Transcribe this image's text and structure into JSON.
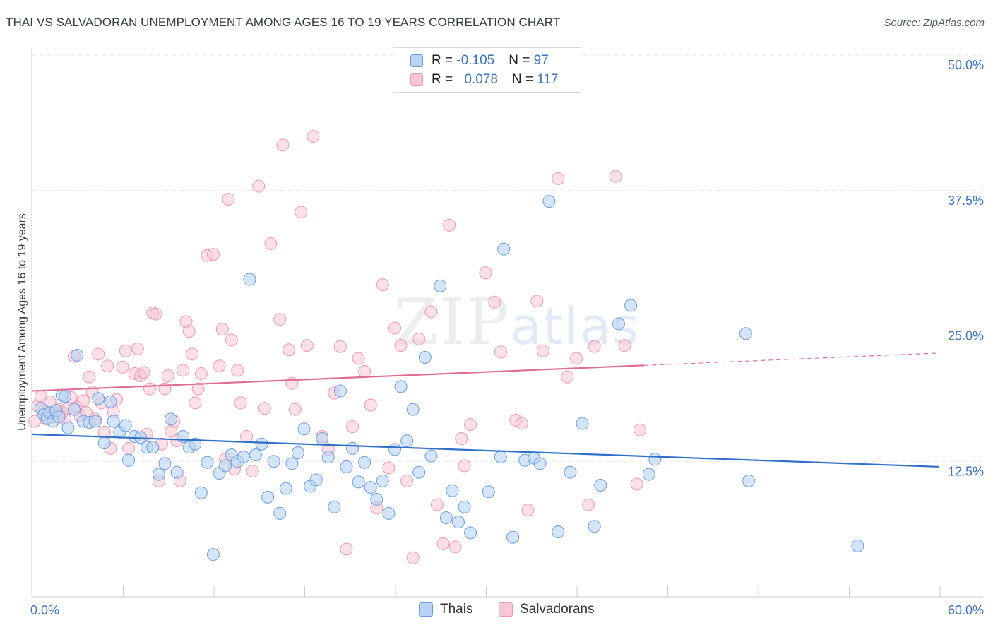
{
  "title": "THAI VS SALVADORAN UNEMPLOYMENT AMONG AGES 16 TO 19 YEARS CORRELATION CHART",
  "source": "Source: ZipAtlas.com",
  "watermark": {
    "zip": "ZIP",
    "atlas": "atlas"
  },
  "legend": {
    "thais": {
      "r_label": "R = ",
      "r_value": "-0.105",
      "n_label": "N = ",
      "n_value": "97"
    },
    "salvadorans": {
      "r_label": "R = ",
      "r_value": "0.078",
      "n_label": "N = ",
      "n_value": "117"
    }
  },
  "colors": {
    "thais_fill": "#b8d3f3",
    "thais_stroke": "#6a9de0",
    "thais_line": "#2f6fc8",
    "salv_fill": "#f8c6d6",
    "salv_stroke": "#ec98b3",
    "salv_line": "#e06d93",
    "axis_text": "#3a72c4",
    "grid": "#e3e6e9"
  },
  "chart_data": {
    "type": "scatter",
    "title": "THAI VS SALVADORAN UNEMPLOYMENT AMONG AGES 16 TO 19 YEARS CORRELATION CHART",
    "xlabel": "",
    "ylabel": "Unemployment Among Ages 16 to 19 years",
    "xlim": [
      0,
      60
    ],
    "ylim": [
      0,
      50
    ],
    "x_tick_labels": [
      "0.0%",
      "60.0%"
    ],
    "y_ticks": [
      12.5,
      25.0,
      37.5,
      50.0
    ],
    "y_tick_labels": [
      "12.5%",
      "25.0%",
      "37.5%",
      "50.0%"
    ],
    "grid": true,
    "legend_position": "top-center",
    "series": [
      {
        "name": "Thais",
        "trend": {
          "x0": 0,
          "y0": 15.0,
          "x1": 60,
          "y1": 12.0,
          "dashed_from": null
        },
        "points": [
          [
            0.6,
            17.4
          ],
          [
            0.8,
            16.8
          ],
          [
            1.0,
            16.5
          ],
          [
            1.2,
            17.0
          ],
          [
            1.4,
            16.2
          ],
          [
            1.6,
            17.2
          ],
          [
            1.8,
            16.6
          ],
          [
            2.0,
            18.6
          ],
          [
            2.2,
            18.5
          ],
          [
            2.4,
            15.6
          ],
          [
            2.8,
            17.3
          ],
          [
            3.0,
            22.3
          ],
          [
            3.4,
            16.2
          ],
          [
            3.8,
            16.1
          ],
          [
            4.2,
            16.2
          ],
          [
            4.4,
            18.3
          ],
          [
            4.8,
            14.2
          ],
          [
            5.2,
            18.0
          ],
          [
            5.4,
            16.2
          ],
          [
            5.8,
            15.2
          ],
          [
            6.2,
            15.8
          ],
          [
            6.4,
            12.6
          ],
          [
            6.8,
            14.8
          ],
          [
            7.2,
            14.7
          ],
          [
            7.6,
            13.8
          ],
          [
            8.0,
            13.8
          ],
          [
            8.4,
            11.3
          ],
          [
            8.8,
            12.3
          ],
          [
            9.2,
            16.4
          ],
          [
            9.6,
            11.5
          ],
          [
            10.0,
            14.8
          ],
          [
            10.4,
            13.8
          ],
          [
            10.8,
            14.1
          ],
          [
            11.2,
            9.6
          ],
          [
            11.6,
            12.4
          ],
          [
            12.0,
            3.9
          ],
          [
            12.4,
            11.4
          ],
          [
            12.8,
            12.1
          ],
          [
            13.2,
            13.1
          ],
          [
            13.6,
            12.5
          ],
          [
            14.0,
            12.9
          ],
          [
            14.4,
            29.3
          ],
          [
            14.8,
            13.1
          ],
          [
            15.2,
            14.1
          ],
          [
            15.6,
            9.2
          ],
          [
            16.0,
            12.5
          ],
          [
            16.4,
            7.7
          ],
          [
            16.8,
            10.0
          ],
          [
            17.2,
            12.3
          ],
          [
            17.6,
            13.3
          ],
          [
            18.0,
            15.5
          ],
          [
            18.4,
            10.2
          ],
          [
            18.8,
            10.8
          ],
          [
            19.2,
            14.6
          ],
          [
            19.6,
            12.9
          ],
          [
            20.0,
            8.3
          ],
          [
            20.4,
            19.0
          ],
          [
            20.8,
            12.0
          ],
          [
            21.2,
            13.7
          ],
          [
            21.6,
            10.6
          ],
          [
            22.0,
            12.4
          ],
          [
            22.4,
            10.1
          ],
          [
            22.8,
            9.0
          ],
          [
            23.2,
            10.7
          ],
          [
            23.6,
            7.7
          ],
          [
            24.0,
            13.6
          ],
          [
            24.4,
            19.4
          ],
          [
            24.8,
            14.4
          ],
          [
            25.2,
            17.3
          ],
          [
            25.6,
            11.5
          ],
          [
            26.0,
            22.1
          ],
          [
            26.4,
            13.0
          ],
          [
            27.0,
            28.7
          ],
          [
            27.4,
            7.3
          ],
          [
            27.8,
            9.8
          ],
          [
            28.2,
            6.9
          ],
          [
            28.6,
            8.3
          ],
          [
            29.0,
            5.9
          ],
          [
            30.2,
            9.7
          ],
          [
            31.2,
            32.1
          ],
          [
            31.0,
            12.9
          ],
          [
            31.8,
            5.5
          ],
          [
            32.6,
            12.6
          ],
          [
            33.2,
            12.8
          ],
          [
            33.6,
            12.3
          ],
          [
            34.2,
            36.5
          ],
          [
            34.8,
            6.0
          ],
          [
            35.6,
            11.5
          ],
          [
            36.4,
            16.0
          ],
          [
            37.2,
            6.5
          ],
          [
            37.6,
            10.3
          ],
          [
            38.8,
            25.2
          ],
          [
            39.6,
            26.9
          ],
          [
            40.8,
            11.3
          ],
          [
            41.2,
            12.7
          ],
          [
            47.2,
            24.3
          ],
          [
            47.4,
            10.7
          ],
          [
            54.6,
            4.7
          ]
        ]
      },
      {
        "name": "Salvadorans",
        "trend": {
          "x0": 0,
          "y0": 19.0,
          "x1": 60,
          "y1": 22.5,
          "dashed_from": 40.5
        },
        "points": [
          [
            0.2,
            16.2
          ],
          [
            0.4,
            17.6
          ],
          [
            0.6,
            18.5
          ],
          [
            0.8,
            17.2
          ],
          [
            1.0,
            16.4
          ],
          [
            1.2,
            18.0
          ],
          [
            1.4,
            16.6
          ],
          [
            1.6,
            17.0
          ],
          [
            1.8,
            17.3
          ],
          [
            2.0,
            17.0
          ],
          [
            2.2,
            16.5
          ],
          [
            2.4,
            17.4
          ],
          [
            2.6,
            18.4
          ],
          [
            2.8,
            22.2
          ],
          [
            3.0,
            17.5
          ],
          [
            3.2,
            16.7
          ],
          [
            3.4,
            18.1
          ],
          [
            3.6,
            17.0
          ],
          [
            3.8,
            20.3
          ],
          [
            4.0,
            18.9
          ],
          [
            4.2,
            16.4
          ],
          [
            4.4,
            22.4
          ],
          [
            4.6,
            17.9
          ],
          [
            4.8,
            15.2
          ],
          [
            5.0,
            21.3
          ],
          [
            5.2,
            13.7
          ],
          [
            5.4,
            17.1
          ],
          [
            5.6,
            18.2
          ],
          [
            6.0,
            21.2
          ],
          [
            6.2,
            22.7
          ],
          [
            6.4,
            13.7
          ],
          [
            6.8,
            20.6
          ],
          [
            7.0,
            22.9
          ],
          [
            7.2,
            20.4
          ],
          [
            7.4,
            20.7
          ],
          [
            7.6,
            15.0
          ],
          [
            7.8,
            19.2
          ],
          [
            8.0,
            26.2
          ],
          [
            8.2,
            26.1
          ],
          [
            8.4,
            10.7
          ],
          [
            8.6,
            14.1
          ],
          [
            8.8,
            19.2
          ],
          [
            9.0,
            20.4
          ],
          [
            9.2,
            15.3
          ],
          [
            9.4,
            16.2
          ],
          [
            9.6,
            14.4
          ],
          [
            9.8,
            10.7
          ],
          [
            10.0,
            20.9
          ],
          [
            10.2,
            25.4
          ],
          [
            10.4,
            24.5
          ],
          [
            10.6,
            22.4
          ],
          [
            10.8,
            17.9
          ],
          [
            11.0,
            19.2
          ],
          [
            11.2,
            20.6
          ],
          [
            11.6,
            31.5
          ],
          [
            12.0,
            31.6
          ],
          [
            12.4,
            21.3
          ],
          [
            12.8,
            12.7
          ],
          [
            12.6,
            24.7
          ],
          [
            13.0,
            36.7
          ],
          [
            13.2,
            23.7
          ],
          [
            13.4,
            11.8
          ],
          [
            13.6,
            20.9
          ],
          [
            13.8,
            17.9
          ],
          [
            14.2,
            14.8
          ],
          [
            14.6,
            11.6
          ],
          [
            15.0,
            37.9
          ],
          [
            15.4,
            17.4
          ],
          [
            15.8,
            32.6
          ],
          [
            16.4,
            25.6
          ],
          [
            16.6,
            41.7
          ],
          [
            17.0,
            22.8
          ],
          [
            17.2,
            19.7
          ],
          [
            17.4,
            17.3
          ],
          [
            17.8,
            35.5
          ],
          [
            18.2,
            23.2
          ],
          [
            18.6,
            42.5
          ],
          [
            19.2,
            14.8
          ],
          [
            19.6,
            13.6
          ],
          [
            20.0,
            18.8
          ],
          [
            20.4,
            23.1
          ],
          [
            20.8,
            4.4
          ],
          [
            21.2,
            15.7
          ],
          [
            21.6,
            22.0
          ],
          [
            22.0,
            20.8
          ],
          [
            22.4,
            17.7
          ],
          [
            22.8,
            8.2
          ],
          [
            23.2,
            28.8
          ],
          [
            23.6,
            11.9
          ],
          [
            24.0,
            24.8
          ],
          [
            24.4,
            23.2
          ],
          [
            24.8,
            10.7
          ],
          [
            25.2,
            3.6
          ],
          [
            25.6,
            23.8
          ],
          [
            26.4,
            26.3
          ],
          [
            26.8,
            8.5
          ],
          [
            27.2,
            4.9
          ],
          [
            27.6,
            34.3
          ],
          [
            28.0,
            4.6
          ],
          [
            28.4,
            14.6
          ],
          [
            28.6,
            12.1
          ],
          [
            29.0,
            15.9
          ],
          [
            30.0,
            29.9
          ],
          [
            30.6,
            27.2
          ],
          [
            31.0,
            22.6
          ],
          [
            32.0,
            16.3
          ],
          [
            32.4,
            16.0
          ],
          [
            32.8,
            8.0
          ],
          [
            33.4,
            27.3
          ],
          [
            33.8,
            22.7
          ],
          [
            34.8,
            38.6
          ],
          [
            35.4,
            20.3
          ],
          [
            36.0,
            22.0
          ],
          [
            36.8,
            8.5
          ],
          [
            37.2,
            23.1
          ],
          [
            38.6,
            38.8
          ],
          [
            39.2,
            23.2
          ],
          [
            40.0,
            10.4
          ],
          [
            40.2,
            15.4
          ]
        ]
      }
    ]
  },
  "bottom_legend": {
    "thais": "Thais",
    "salvadorans": "Salvadorans"
  }
}
